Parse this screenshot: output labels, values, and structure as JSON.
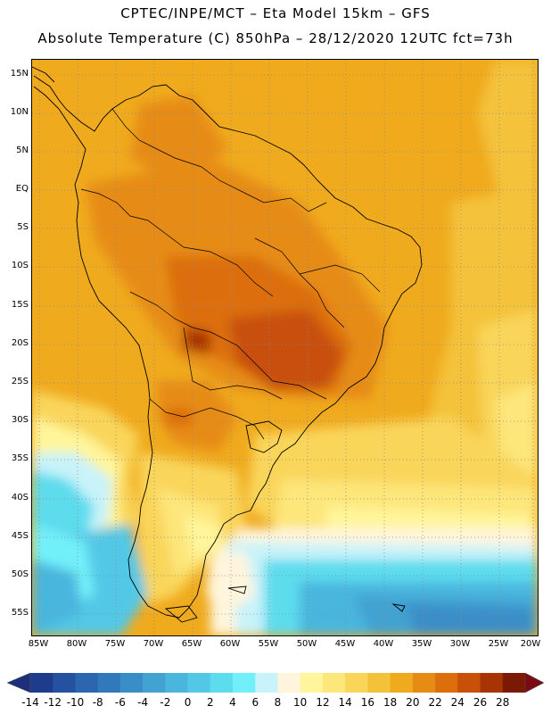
{
  "header": {
    "line1": "CPTEC/INPE/MCT –  Eta Model 15km – GFS",
    "line2": "Absolute Temperature (C) 850hPa – 28/12/2020 12UTC fct=73h"
  },
  "map": {
    "latitudes": [
      "15N",
      "10N",
      "5N",
      "EQ",
      "5S",
      "10S",
      "15S",
      "20S",
      "25S",
      "30S",
      "35S",
      "40S",
      "45S",
      "50S",
      "55S"
    ],
    "longitudes": [
      "85W",
      "80W",
      "75W",
      "70W",
      "65W",
      "60W",
      "55W",
      "50W",
      "45W",
      "40W",
      "35W",
      "30W",
      "25W",
      "20W"
    ],
    "grid": "dotted"
  },
  "colorbar": {
    "labels": [
      "-14",
      "-12",
      "-10",
      "-8",
      "-6",
      "-4",
      "-2",
      "0",
      "2",
      "4",
      "6",
      "8",
      "10",
      "12",
      "14",
      "16",
      "18",
      "20",
      "22",
      "24",
      "26",
      "28"
    ],
    "colors": [
      "#1e3c8c",
      "#2552a0",
      "#2b66ae",
      "#3279bc",
      "#3a8ec8",
      "#42a2d2",
      "#4ab6de",
      "#52c8e6",
      "#5ddcee",
      "#72f0fa",
      "#c8f3fa",
      "#fff5dc",
      "#fff59a",
      "#fde67a",
      "#f9d55a",
      "#f4c23a",
      "#f0aa1e",
      "#e68c14",
      "#dc6e0c",
      "#c85008",
      "#a83406",
      "#7a1a04"
    ],
    "under_color": "#1c2f78",
    "over_color": "#7a0a14"
  }
}
